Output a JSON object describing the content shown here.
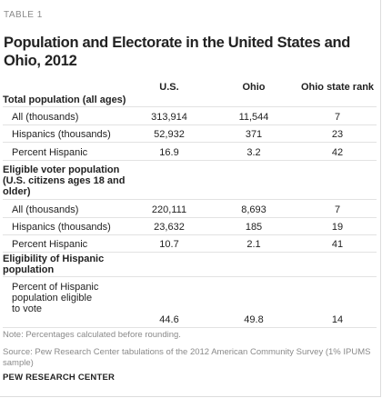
{
  "table_label": "TABLE 1",
  "title": "Population and Electorate in the United States and Ohio, 2012",
  "columns": [
    "U.S.",
    "Ohio",
    "Ohio state rank"
  ],
  "sections": [
    {
      "heading": "Total population (all ages)",
      "rows": [
        {
          "label": "All (thousands)",
          "values": [
            "313,914",
            "11,544",
            "7"
          ]
        },
        {
          "label": "Hispanics (thousands)",
          "values": [
            "52,932",
            "371",
            "23"
          ]
        },
        {
          "label": "Percent Hispanic",
          "values": [
            "16.9",
            "3.2",
            "42"
          ]
        }
      ]
    },
    {
      "heading": "Eligible voter population (U.S. citizens ages 18 and older)",
      "rows": [
        {
          "label": "All (thousands)",
          "values": [
            "220,111",
            "8,693",
            "7"
          ]
        },
        {
          "label": "Hispanics (thousands)",
          "values": [
            "23,632",
            "185",
            "19"
          ]
        },
        {
          "label": "Percent Hispanic",
          "values": [
            "10.7",
            "2.1",
            "41"
          ]
        }
      ]
    },
    {
      "heading": "Eligibility of Hispanic population",
      "rows": [
        {
          "label": "Percent of Hispanic population eligible to vote",
          "values": [
            "44.6",
            "49.8",
            "14"
          ]
        }
      ]
    }
  ],
  "note": "Note: Percentages calculated before rounding.",
  "source": "Source: Pew Research Center tabulations of the 2012 American Community Survey (1% IPUMS sample)",
  "brand": "PEW RESEARCH CENTER"
}
